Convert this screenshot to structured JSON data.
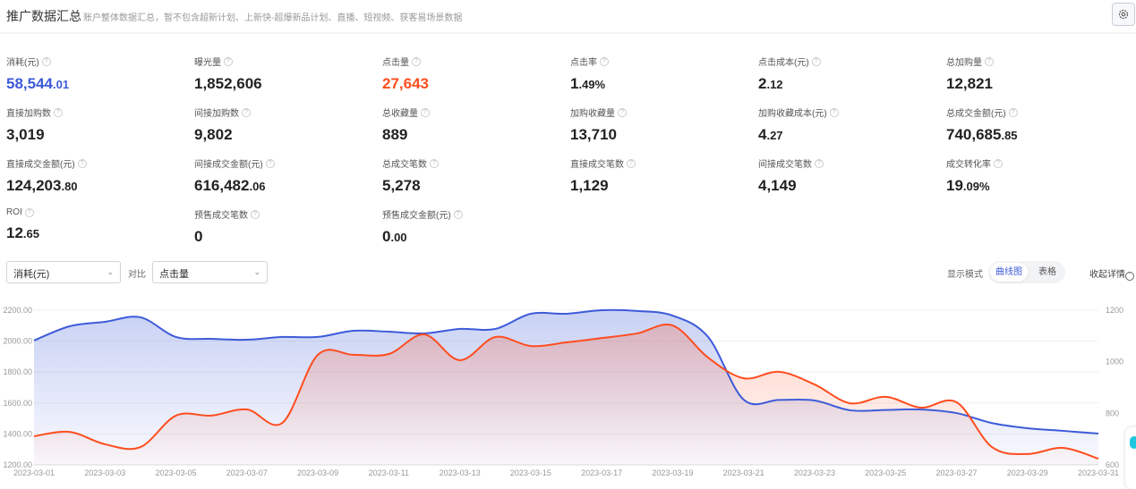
{
  "header": {
    "title": "推广数据汇总",
    "subtitle": "账户整体数据汇总，暂不包含超新计划、上新快-超爆新品计划、直播、短视频、获客易场景数据",
    "settings_icon": "gear-icon"
  },
  "metrics": [
    {
      "label": "消耗(元)",
      "int": "58,544",
      "dec": ".01",
      "color": "#3d5bd9"
    },
    {
      "label": "曝光量",
      "int": "1,852,606",
      "dec": ""
    },
    {
      "label": "点击量",
      "int": "27,643",
      "dec": "",
      "color": "#ff4d1f"
    },
    {
      "label": "点击率",
      "int": "1",
      "dec": ".49%"
    },
    {
      "label": "点击成本(元)",
      "int": "2",
      "dec": ".12"
    },
    {
      "label": "总加购量",
      "int": "12,821",
      "dec": ""
    },
    {
      "label": "直接加购数",
      "int": "3,019",
      "dec": ""
    },
    {
      "label": "间接加购数",
      "int": "9,802",
      "dec": ""
    },
    {
      "label": "总收藏量",
      "int": "889",
      "dec": ""
    },
    {
      "label": "加购收藏量",
      "int": "13,710",
      "dec": ""
    },
    {
      "label": "加购收藏成本(元)",
      "int": "4",
      "dec": ".27"
    },
    {
      "label": "总成交金额(元)",
      "int": "740,685",
      "dec": ".85"
    },
    {
      "label": "直接成交金额(元)",
      "int": "124,203",
      "dec": ".80"
    },
    {
      "label": "间接成交金额(元)",
      "int": "616,482",
      "dec": ".06"
    },
    {
      "label": "总成交笔数",
      "int": "5,278",
      "dec": ""
    },
    {
      "label": "直接成交笔数",
      "int": "1,129",
      "dec": ""
    },
    {
      "label": "间接成交笔数",
      "int": "4,149",
      "dec": ""
    },
    {
      "label": "成交转化率",
      "int": "19",
      "dec": ".09%"
    },
    {
      "label": "ROI",
      "int": "12",
      "dec": ".65"
    },
    {
      "label": "预售成交笔数",
      "int": "0",
      "dec": ""
    },
    {
      "label": "预售成交金额(元)",
      "int": "0",
      "dec": ".00"
    }
  ],
  "controls": {
    "primary_select": "消耗(元)",
    "compare_label": "对比",
    "compare_select": "点击量",
    "display_mode_label": "显示模式",
    "mode_chart": "曲线图",
    "mode_table": "表格",
    "collapse": "收起详情"
  },
  "chart_data": {
    "type": "area",
    "x": [
      "2023-03-01",
      "2023-03-02",
      "2023-03-03",
      "2023-03-04",
      "2023-03-05",
      "2023-03-06",
      "2023-03-07",
      "2023-03-08",
      "2023-03-09",
      "2023-03-10",
      "2023-03-11",
      "2023-03-12",
      "2023-03-13",
      "2023-03-14",
      "2023-03-15",
      "2023-03-16",
      "2023-03-17",
      "2023-03-18",
      "2023-03-19",
      "2023-03-20",
      "2023-03-21",
      "2023-03-22",
      "2023-03-23",
      "2023-03-24",
      "2023-03-25",
      "2023-03-26",
      "2023-03-27",
      "2023-03-28",
      "2023-03-29",
      "2023-03-30",
      "2023-03-31"
    ],
    "x_tick_labels": [
      "2023-03-01",
      "2023-03-03",
      "2023-03-05",
      "2023-03-07",
      "2023-03-09",
      "2023-03-11",
      "2023-03-13",
      "2023-03-15",
      "2023-03-17",
      "2023-03-19",
      "2023-03-21",
      "2023-03-23",
      "2023-03-25",
      "2023-03-27",
      "2023-03-29",
      "2023-03-31"
    ],
    "y_left": {
      "ticks": [
        "1200.00",
        "1400.00",
        "1600.00",
        "1800.00",
        "2000.00",
        "2200.00"
      ],
      "range": [
        1200,
        2200
      ]
    },
    "y_right": {
      "ticks": [
        "600",
        "800",
        "1000",
        "1200"
      ],
      "range": [
        600,
        1200
      ]
    },
    "grid": true,
    "series": [
      {
        "axis": "left",
        "color": "#3d5bd9",
        "values": [
          2004,
          2096,
          2125,
          2154,
          2027,
          2015,
          2009,
          2027,
          2027,
          2067,
          2061,
          2050,
          2079,
          2079,
          2177,
          2177,
          2200,
          2195,
          2165,
          2027,
          1622,
          1620,
          1616,
          1553,
          1555,
          1558,
          1535,
          1470,
          1437,
          1420,
          1402
        ]
      },
      {
        "axis": "right",
        "color": "#ff4d1f",
        "values": [
          711,
          728,
          680,
          669,
          791,
          791,
          815,
          763,
          1027,
          1027,
          1030,
          1106,
          1006,
          1096,
          1061,
          1075,
          1092,
          1110,
          1141,
          1016,
          936,
          961,
          912,
          839,
          864,
          822,
          843,
          669,
          642,
          666,
          624
        ]
      }
    ]
  }
}
